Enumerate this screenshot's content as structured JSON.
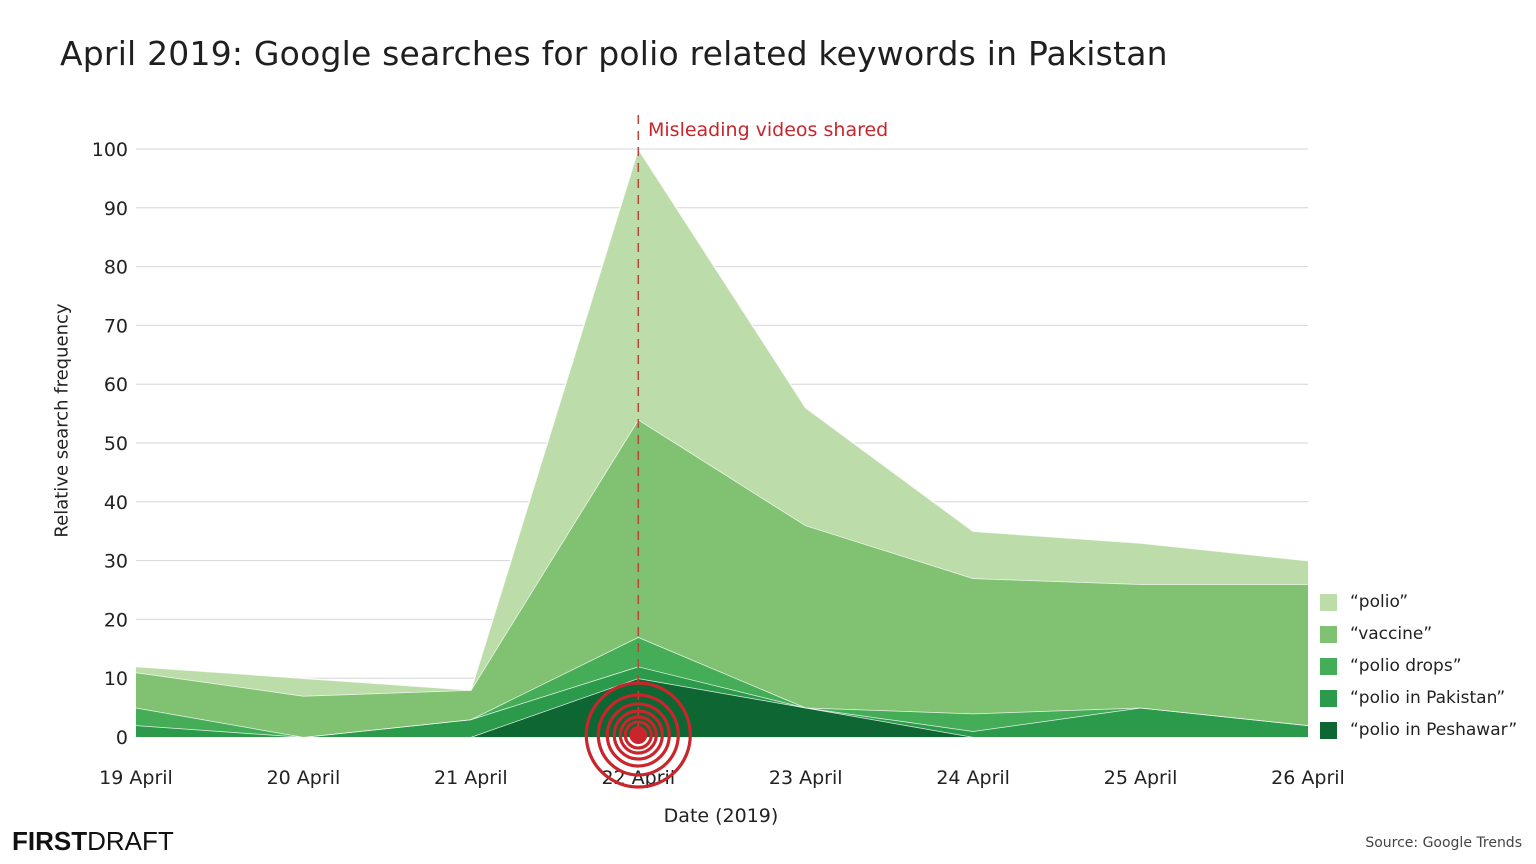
{
  "title": "April 2019: Google searches for polio related keywords in Pakistan",
  "annotation": {
    "label": "Misleading videos shared",
    "date_index": 3,
    "color": "#c9252c"
  },
  "axes": {
    "ylabel": "Relative search frequency",
    "xlabel": "Date (2019)",
    "yticks": [
      "0",
      "10",
      "20",
      "30",
      "40",
      "50",
      "60",
      "70",
      "80",
      "90",
      "100"
    ]
  },
  "legend": [
    {
      "label": "“polio”",
      "color": "#bcdcaa"
    },
    {
      "label": "“vaccine”",
      "color": "#80c271"
    },
    {
      "label": "“polio drops”",
      "color": "#45ad58"
    },
    {
      "label": "“polio in Pakistan”",
      "color": "#2b9a4b"
    },
    {
      "label": "“polio in Peshawar”",
      "color": "#0e6632"
    }
  ],
  "footer": {
    "logo_bold": "FIRST",
    "logo_light": "DRAFT",
    "source": "Source: Google Trends"
  },
  "chart_data": {
    "type": "area",
    "stacked": true,
    "title": "April 2019: Google searches for polio related keywords in Pakistan",
    "xlabel": "Date (2019)",
    "ylabel": "Relative search frequency",
    "ylim": [
      0,
      100
    ],
    "grid": true,
    "legend_position": "right-bottom",
    "categories": [
      "19 April",
      "20 April",
      "21 April",
      "22 April",
      "23 April",
      "24 April",
      "25 April",
      "26 April"
    ],
    "series": [
      {
        "name": "“polio in Peshawar”",
        "color": "#0e6632",
        "values": [
          0,
          0,
          0,
          10,
          5,
          0,
          0,
          0
        ]
      },
      {
        "name": "“polio in Pakistan”",
        "color": "#2b9a4b",
        "values": [
          2,
          0,
          3,
          2,
          0,
          1,
          5,
          2
        ]
      },
      {
        "name": "“polio drops”",
        "color": "#45ad58",
        "values": [
          3,
          0,
          0,
          5,
          0,
          3,
          0,
          0
        ]
      },
      {
        "name": "“vaccine”",
        "color": "#80c271",
        "values": [
          6,
          7,
          5,
          37,
          31,
          23,
          21,
          24
        ]
      },
      {
        "name": "“polio”",
        "color": "#bcdcaa",
        "values": [
          1,
          3,
          0,
          46,
          20,
          8,
          7,
          4
        ]
      }
    ],
    "stacked_totals": [
      12,
      10,
      8,
      100,
      56,
      35,
      33,
      30
    ],
    "annotations": [
      {
        "x": "22 April",
        "label": "Misleading videos shared",
        "style": "dashed vertical line, red",
        "marker": "concentric red circles at baseline"
      }
    ]
  }
}
